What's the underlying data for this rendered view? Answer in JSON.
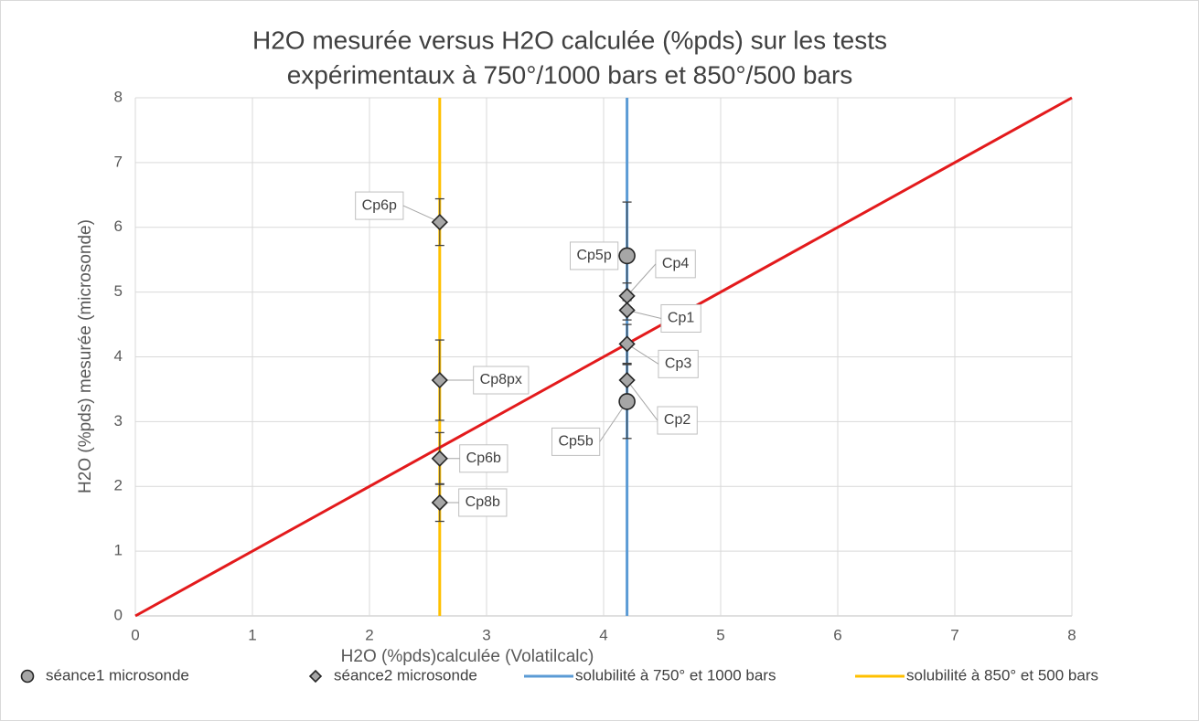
{
  "chart_data": {
    "type": "scatter",
    "title": [
      "H2O mesurée versus H2O calculée (%pds) sur les tests",
      "expérimentaux à 750°/1000 bars et 850°/500 bars"
    ],
    "x_label": "H2O (%pds)calculée (Volatilcalc)",
    "y_label": "H2O (%pds) mesurée (microsonde)",
    "xlim": [
      0,
      8
    ],
    "ylim": [
      0,
      8
    ],
    "xticks": [
      0,
      1,
      2,
      3,
      4,
      5,
      6,
      7,
      8
    ],
    "yticks": [
      0,
      1,
      2,
      3,
      4,
      5,
      6,
      7,
      8
    ],
    "grid": true,
    "legend": "bottom",
    "series": [
      {
        "name": "séance1 microsonde",
        "marker": "circle",
        "color": "#a6a6a6",
        "x": [
          4.2,
          4.2
        ],
        "values": [
          5.56,
          3.31
        ],
        "errors": [
          0.83,
          0.57
        ],
        "labels": [
          "Cp5p",
          "Cp5b"
        ]
      },
      {
        "name": "séance2 microsonde",
        "marker": "diamond",
        "color": "#a6a6a6",
        "x": [
          2.6,
          2.6,
          2.6,
          2.6,
          4.2,
          4.2,
          4.2,
          4.2
        ],
        "values": [
          6.08,
          3.64,
          2.43,
          1.75,
          4.94,
          4.72,
          4.2,
          3.64
        ],
        "errors": [
          0.36,
          0.62,
          0.4,
          0.29,
          0.2,
          0.15,
          0.3,
          0.25
        ],
        "labels": [
          "Cp6p",
          "Cp8px",
          "Cp6b",
          "Cp8b",
          "Cp4",
          "Cp1",
          "Cp3",
          "Cp2"
        ]
      },
      {
        "name": "solubilité à 750° et 1000 bars",
        "marker": "line",
        "color": "#5b9bd5",
        "x": [
          4.2,
          4.2
        ],
        "values": [
          0,
          8
        ]
      },
      {
        "name": "solubilité à 850° et 500 bars",
        "marker": "line",
        "color": "#ffc000",
        "x": [
          2.6,
          2.6
        ],
        "values": [
          0,
          8
        ]
      }
    ],
    "reference_line": {
      "color": "#e31a1c",
      "x": [
        0,
        8
      ],
      "values": [
        0,
        8
      ]
    }
  }
}
